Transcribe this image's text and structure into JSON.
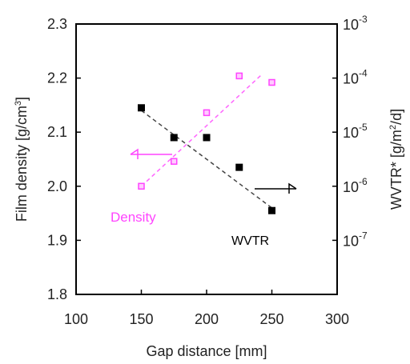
{
  "chart_data": {
    "type": "scatter",
    "title": "",
    "xlabel": "Gap distance [mm]",
    "ylabel_left": "Film density [g/cm",
    "ylabel_left_sup": "3",
    "ylabel_left_end": "]",
    "ylabel_right": "WVTR* [g/m",
    "ylabel_right_sup": "2",
    "ylabel_right_end": "/d]",
    "xlim": [
      100,
      300
    ],
    "ylim_left": [
      1.8,
      2.3
    ],
    "ylim_right_log10": [
      -8,
      -3
    ],
    "right_axis_scale": "log",
    "x_ticks": [
      "100",
      "150",
      "200",
      "250",
      "300"
    ],
    "x_tick_values": [
      100,
      150,
      200,
      250,
      300
    ],
    "y_left_ticks": [
      "1.8",
      "1.9",
      "2.0",
      "2.1",
      "2.2",
      "2.3"
    ],
    "y_left_tick_values": [
      1.8,
      1.9,
      2.0,
      2.1,
      2.2,
      2.3
    ],
    "y_right_ticks": [
      {
        "base": "10",
        "exp": "-7",
        "log": -7
      },
      {
        "base": "10",
        "exp": "-6",
        "log": -6
      },
      {
        "base": "10",
        "exp": "-5",
        "log": -5
      },
      {
        "base": "10",
        "exp": "-4",
        "log": -4
      },
      {
        "base": "10",
        "exp": "-3",
        "log": -3
      }
    ],
    "grid": false,
    "series": [
      {
        "name": "Density",
        "axis": "left",
        "color": "#ff44ff",
        "marker": "open-square",
        "x": [
          150,
          175,
          200,
          225,
          250
        ],
        "y": [
          2.0,
          2.046,
          2.136,
          2.204,
          2.192
        ],
        "trend": {
          "x": [
            150,
            242
          ],
          "y": [
            2.0,
            2.206
          ]
        }
      },
      {
        "name": "WVTR",
        "axis": "right",
        "color": "#000000",
        "marker": "filled-square",
        "x": [
          150,
          175,
          200,
          225,
          250
        ],
        "y_log10": [
          -4.55,
          -5.1,
          -5.1,
          -5.65,
          -6.45
        ],
        "trend": {
          "x": [
            150,
            250
          ],
          "y_log10": [
            -4.6,
            -6.4
          ]
        }
      }
    ],
    "annotations": [
      {
        "text": "Density",
        "color": "#ff44ff"
      },
      {
        "text": "WVTR",
        "color": "#000000"
      }
    ],
    "arrows": [
      {
        "series": "Density",
        "direction": "left",
        "color": "#ff44ff"
      },
      {
        "series": "WVTR",
        "direction": "right",
        "color": "#000000"
      }
    ]
  }
}
